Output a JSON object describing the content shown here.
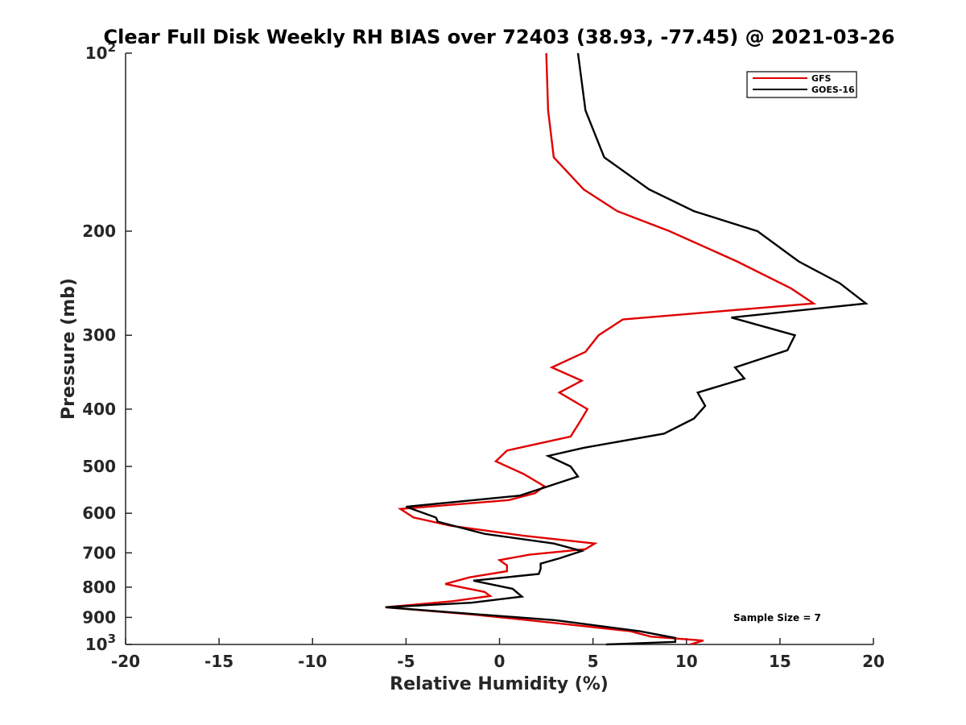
{
  "chart_data": {
    "type": "line",
    "title": "Clear Full Disk Weekly RH BIAS over 72403 (38.93, -77.45) @ 2021-03-26",
    "xlabel": "Relative Humidity (%)",
    "ylabel": "Pressure (mb)",
    "xlim": [
      -20,
      20
    ],
    "ylim": [
      100,
      1000
    ],
    "y_scale": "log",
    "y_reversed": true,
    "x_ticks": [
      "-20",
      "-15",
      "-10",
      "-5",
      "0",
      "5",
      "10",
      "15",
      "20"
    ],
    "y_ticks": [
      {
        "value": 100,
        "label": "10",
        "sup": "2"
      },
      {
        "value": 200,
        "label": "200",
        "sup": ""
      },
      {
        "value": 300,
        "label": "300",
        "sup": ""
      },
      {
        "value": 400,
        "label": "400",
        "sup": ""
      },
      {
        "value": 500,
        "label": "500",
        "sup": ""
      },
      {
        "value": 600,
        "label": "600",
        "sup": ""
      },
      {
        "value": 700,
        "label": "700",
        "sup": ""
      },
      {
        "value": 800,
        "label": "800",
        "sup": ""
      },
      {
        "value": 900,
        "label": "900",
        "sup": ""
      },
      {
        "value": 1000,
        "label": "10",
        "sup": "3"
      }
    ],
    "legend_position": "top-right",
    "annotation": "Sample Size = 7",
    "series": [
      {
        "name": "GFS",
        "color": "#e00000",
        "points": [
          [
            2.5,
            100
          ],
          [
            2.6,
            125
          ],
          [
            2.9,
            150
          ],
          [
            4.5,
            170
          ],
          [
            6.3,
            185
          ],
          [
            9.1,
            200
          ],
          [
            12.7,
            225
          ],
          [
            15.6,
            250
          ],
          [
            16.8,
            265
          ],
          [
            6.6,
            282
          ],
          [
            5.3,
            300
          ],
          [
            4.6,
            320
          ],
          [
            2.8,
            340
          ],
          [
            4.4,
            358
          ],
          [
            3.2,
            375
          ],
          [
            4.7,
            400
          ],
          [
            4.3,
            420
          ],
          [
            3.8,
            445
          ],
          [
            0.4,
            470
          ],
          [
            -0.2,
            490
          ],
          [
            1.3,
            515
          ],
          [
            2.4,
            540
          ],
          [
            1.9,
            555
          ],
          [
            0.5,
            570
          ],
          [
            -5.3,
            590
          ],
          [
            -4.6,
            610
          ],
          [
            -2.6,
            630
          ],
          [
            1.3,
            655
          ],
          [
            5.1,
            675
          ],
          [
            4.6,
            690
          ],
          [
            1.6,
            705
          ],
          [
            0.0,
            720
          ],
          [
            0.4,
            735
          ],
          [
            0.4,
            752
          ],
          [
            -1.6,
            770
          ],
          [
            -2.9,
            790
          ],
          [
            -0.8,
            815
          ],
          [
            -0.5,
            828
          ],
          [
            -2.5,
            845
          ],
          [
            -6.1,
            865
          ],
          [
            -1.4,
            890
          ],
          [
            3.0,
            920
          ],
          [
            7.0,
            950
          ],
          [
            8.1,
            970
          ],
          [
            10.9,
            985
          ],
          [
            10.2,
            1000
          ]
        ]
      },
      {
        "name": "GOES-16",
        "color": "#000000",
        "points": [
          [
            4.2,
            100
          ],
          [
            4.6,
            125
          ],
          [
            5.6,
            150
          ],
          [
            8.0,
            170
          ],
          [
            10.4,
            185
          ],
          [
            13.8,
            200
          ],
          [
            16.0,
            225
          ],
          [
            18.2,
            245
          ],
          [
            19.6,
            265
          ],
          [
            12.4,
            280
          ],
          [
            15.8,
            300
          ],
          [
            15.4,
            318
          ],
          [
            12.6,
            340
          ],
          [
            13.1,
            355
          ],
          [
            10.6,
            375
          ],
          [
            11.0,
            395
          ],
          [
            10.4,
            415
          ],
          [
            8.8,
            440
          ],
          [
            4.5,
            465
          ],
          [
            2.6,
            480
          ],
          [
            3.8,
            500
          ],
          [
            4.2,
            520
          ],
          [
            1.1,
            560
          ],
          [
            -5.0,
            585
          ],
          [
            -3.4,
            610
          ],
          [
            -3.3,
            620
          ],
          [
            -0.8,
            650
          ],
          [
            2.9,
            675
          ],
          [
            4.4,
            695
          ],
          [
            3.2,
            715
          ],
          [
            2.2,
            730
          ],
          [
            2.2,
            745
          ],
          [
            2.1,
            760
          ],
          [
            -1.4,
            780
          ],
          [
            0.7,
            805
          ],
          [
            1.2,
            830
          ],
          [
            -1.5,
            850
          ],
          [
            -6.1,
            865
          ],
          [
            -1.0,
            890
          ],
          [
            3.0,
            910
          ],
          [
            7.5,
            950
          ],
          [
            9.4,
            975
          ],
          [
            9.4,
            990
          ],
          [
            5.7,
            1000
          ]
        ]
      }
    ]
  }
}
